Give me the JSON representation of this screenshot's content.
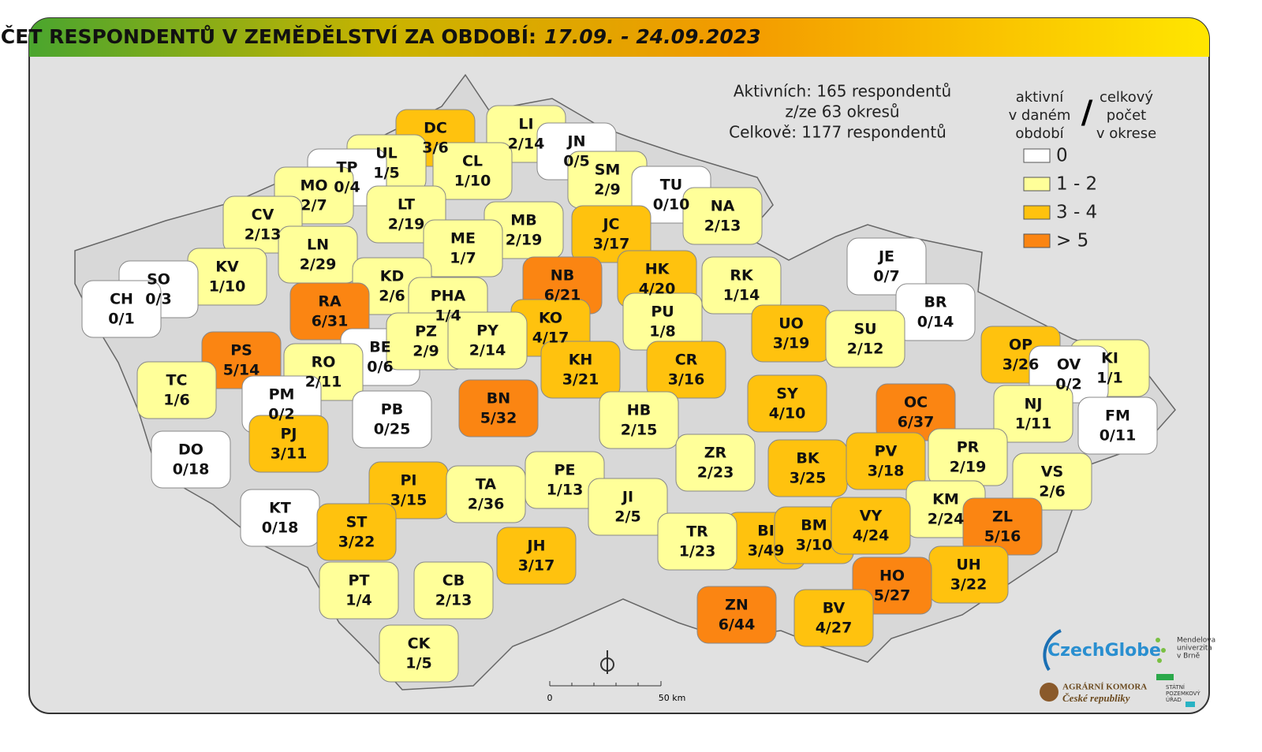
{
  "header": {
    "title": "POČET RESPONDENTŮ V ZEMĚDĚLSTVÍ ZA OBDOBÍ:",
    "period": "17.09. - 24.09.2023"
  },
  "stats": [
    "Aktivních: 165 respondentů",
    "z/ze 63 okresů",
    "Celkově: 1177 respondentů"
  ],
  "legend": {
    "left": [
      "aktivní",
      "v daném",
      "období"
    ],
    "separator": "/",
    "right": [
      "celkový",
      "počet",
      "v okrese"
    ],
    "items": [
      {
        "label": "0",
        "color": "#ffffff"
      },
      {
        "label": "1 - 2",
        "color": "#ffff99"
      },
      {
        "label": "3 - 4",
        "color": "#ffc20e"
      },
      {
        "label": "> 5",
        "color": "#fb8512"
      }
    ]
  },
  "districts": [
    {
      "code": "DC",
      "count": "3/6",
      "color": "#ffc20e"
    },
    {
      "code": "LI",
      "count": "2/14",
      "color": "#ffff99"
    },
    {
      "code": "JN",
      "count": "0/5",
      "color": "#ffffff"
    },
    {
      "code": "UL",
      "count": "1/5",
      "color": "#ffff99"
    },
    {
      "code": "TP",
      "count": "0/4",
      "color": "#ffffff"
    },
    {
      "code": "MO",
      "count": "2/7",
      "color": "#ffff99"
    },
    {
      "code": "CL",
      "count": "1/10",
      "color": "#ffff99"
    },
    {
      "code": "SM",
      "count": "2/9",
      "color": "#ffff99"
    },
    {
      "code": "TU",
      "count": "0/10",
      "color": "#ffffff"
    },
    {
      "code": "NA",
      "count": "2/13",
      "color": "#ffff99"
    },
    {
      "code": "CV",
      "count": "2/13",
      "color": "#ffff99"
    },
    {
      "code": "LT",
      "count": "2/19",
      "color": "#ffff99"
    },
    {
      "code": "JC",
      "count": "3/17",
      "color": "#ffc20e"
    },
    {
      "code": "MB",
      "count": "2/19",
      "color": "#ffff99"
    },
    {
      "code": "ME",
      "count": "1/7",
      "color": "#ffff99"
    },
    {
      "code": "LN",
      "count": "2/29",
      "color": "#ffff99"
    },
    {
      "code": "KV",
      "count": "1/10",
      "color": "#ffff99"
    },
    {
      "code": "SO",
      "count": "0/3",
      "color": "#ffffff"
    },
    {
      "code": "HK",
      "count": "4/20",
      "color": "#ffc20e"
    },
    {
      "code": "NB",
      "count": "6/21",
      "color": "#fb8512"
    },
    {
      "code": "KD",
      "count": "2/6",
      "color": "#ffff99"
    },
    {
      "code": "RK",
      "count": "1/14",
      "color": "#ffff99"
    },
    {
      "code": "JE",
      "count": "0/7",
      "color": "#ffffff"
    },
    {
      "code": "CH",
      "count": "0/1",
      "color": "#ffffff"
    },
    {
      "code": "RA",
      "count": "6/31",
      "color": "#fb8512"
    },
    {
      "code": "PHA",
      "count": "1/4",
      "color": "#ffff99"
    },
    {
      "code": "BR",
      "count": "0/14",
      "color": "#ffffff"
    },
    {
      "code": "PU",
      "count": "1/8",
      "color": "#ffff99"
    },
    {
      "code": "KO",
      "count": "4/17",
      "color": "#ffc20e"
    },
    {
      "code": "UO",
      "count": "3/19",
      "color": "#ffc20e"
    },
    {
      "code": "SU",
      "count": "2/12",
      "color": "#ffff99"
    },
    {
      "code": "OP",
      "count": "3/26",
      "color": "#ffc20e"
    },
    {
      "code": "PS",
      "count": "5/14",
      "color": "#fb8512"
    },
    {
      "code": "BE",
      "count": "0/6",
      "color": "#ffffff"
    },
    {
      "code": "PZ",
      "count": "2/9",
      "color": "#ffff99"
    },
    {
      "code": "PY",
      "count": "2/14",
      "color": "#ffff99"
    },
    {
      "code": "KI",
      "count": "1/1",
      "color": "#ffff99"
    },
    {
      "code": "OV",
      "count": "0/2",
      "color": "#ffffff"
    },
    {
      "code": "KH",
      "count": "3/21",
      "color": "#ffc20e"
    },
    {
      "code": "CR",
      "count": "3/16",
      "color": "#ffc20e"
    },
    {
      "code": "RO",
      "count": "2/11",
      "color": "#ffff99"
    },
    {
      "code": "TC",
      "count": "1/6",
      "color": "#ffff99"
    },
    {
      "code": "SY",
      "count": "4/10",
      "color": "#ffc20e"
    },
    {
      "code": "OC",
      "count": "6/37",
      "color": "#fb8512"
    },
    {
      "code": "BN",
      "count": "5/32",
      "color": "#fb8512"
    },
    {
      "code": "PM",
      "count": "0/2",
      "color": "#ffffff"
    },
    {
      "code": "NJ",
      "count": "1/11",
      "color": "#ffff99"
    },
    {
      "code": "FM",
      "count": "0/11",
      "color": "#ffffff"
    },
    {
      "code": "PB",
      "count": "0/25",
      "color": "#ffffff"
    },
    {
      "code": "HB",
      "count": "2/15",
      "color": "#ffff99"
    },
    {
      "code": "DO",
      "count": "0/18",
      "color": "#ffffff"
    },
    {
      "code": "PJ",
      "count": "3/11",
      "color": "#ffc20e"
    },
    {
      "code": "ZR",
      "count": "2/23",
      "color": "#ffff99"
    },
    {
      "code": "BK",
      "count": "3/25",
      "color": "#ffc20e"
    },
    {
      "code": "PV",
      "count": "3/18",
      "color": "#ffc20e"
    },
    {
      "code": "PR",
      "count": "2/19",
      "color": "#ffff99"
    },
    {
      "code": "VS",
      "count": "2/6",
      "color": "#ffff99"
    },
    {
      "code": "PE",
      "count": "1/13",
      "color": "#ffff99"
    },
    {
      "code": "PI",
      "count": "3/15",
      "color": "#ffc20e"
    },
    {
      "code": "TA",
      "count": "2/36",
      "color": "#ffff99"
    },
    {
      "code": "JI",
      "count": "2/5",
      "color": "#ffff99"
    },
    {
      "code": "KM",
      "count": "2/24",
      "color": "#ffff99"
    },
    {
      "code": "KT",
      "count": "0/18",
      "color": "#ffffff"
    },
    {
      "code": "ZL",
      "count": "5/16",
      "color": "#fb8512"
    },
    {
      "code": "ST",
      "count": "3/22",
      "color": "#ffc20e"
    },
    {
      "code": "BI",
      "count": "3/49",
      "color": "#ffc20e"
    },
    {
      "code": "BM",
      "count": "3/10",
      "color": "#ffc20e"
    },
    {
      "code": "VY",
      "count": "4/24",
      "color": "#ffc20e"
    },
    {
      "code": "TR",
      "count": "1/23",
      "color": "#ffff99"
    },
    {
      "code": "JH",
      "count": "3/17",
      "color": "#ffc20e"
    },
    {
      "code": "UH",
      "count": "3/22",
      "color": "#ffc20e"
    },
    {
      "code": "PT",
      "count": "1/4",
      "color": "#ffff99"
    },
    {
      "code": "CB",
      "count": "2/13",
      "color": "#ffff99"
    },
    {
      "code": "HO",
      "count": "5/27",
      "color": "#fb8512"
    },
    {
      "code": "ZN",
      "count": "6/44",
      "color": "#fb8512"
    },
    {
      "code": "BV",
      "count": "4/27",
      "color": "#ffc20e"
    },
    {
      "code": "CK",
      "count": "1/5",
      "color": "#ffff99"
    }
  ],
  "scale": {
    "start": "0",
    "end": "50 km"
  },
  "logos": {
    "czechglobe": "CzechGlobe",
    "mendelu": [
      "Mendelova",
      "univerzita",
      "v Brně"
    ],
    "komora": [
      "AGRÁRNÍ KOMORA",
      "České republiky"
    ],
    "spu": [
      "STÁTNÍ",
      "POZEMKOVÝ",
      "ÚŘAD"
    ]
  }
}
